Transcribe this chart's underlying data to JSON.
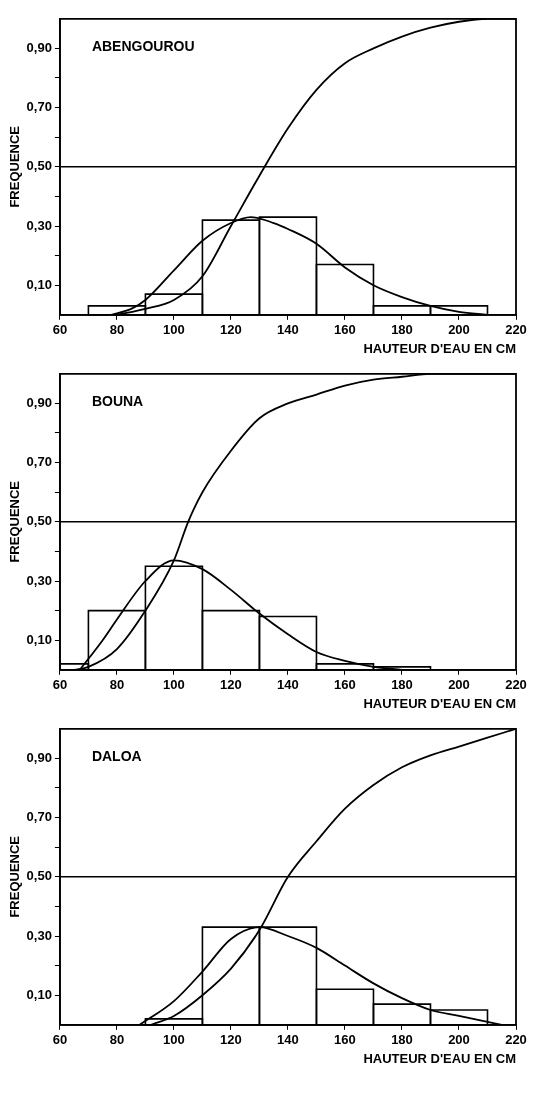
{
  "chart_data": [
    {
      "type": "histogram",
      "title": "ABENGOUROU",
      "xlabel": "HAUTEUR D'EAU EN CM",
      "ylabel": "FREQUENCE",
      "color": "#000000",
      "bins": [
        70,
        90,
        110,
        130,
        150,
        170,
        190,
        210
      ],
      "values": [
        0.03,
        0.07,
        0.32,
        0.33,
        0.17,
        0.03,
        0.03
      ],
      "series": [
        {
          "type": "line",
          "color": "#000000",
          "x": [
            78,
            85,
            90,
            100,
            110,
            120,
            127,
            135,
            140,
            150,
            160,
            170,
            180,
            190,
            200,
            210
          ],
          "values": [
            0,
            0.02,
            0.05,
            0.15,
            0.25,
            0.31,
            0.33,
            0.31,
            0.29,
            0.24,
            0.16,
            0.1,
            0.06,
            0.03,
            0.01,
            0
          ]
        },
        {
          "type": "line",
          "color": "#000000",
          "x": [
            80,
            90,
            100,
            110,
            120,
            130,
            140,
            150,
            160,
            170,
            180,
            190,
            200,
            210,
            220
          ],
          "values": [
            0,
            0.02,
            0.05,
            0.13,
            0.3,
            0.47,
            0.63,
            0.76,
            0.85,
            0.9,
            0.94,
            0.97,
            0.99,
            1,
            1
          ]
        }
      ],
      "ref_lines": [
        {
          "axis": "y",
          "value": 0.5,
          "color": "#000000"
        }
      ],
      "xlim": [
        60,
        220
      ],
      "xticks": [
        60,
        80,
        100,
        120,
        140,
        160,
        180,
        200,
        220
      ],
      "ylim": [
        0,
        1
      ],
      "yticks": [
        {
          "value": 0.1,
          "label": "0,10"
        },
        {
          "value": 0.2,
          "label": null
        },
        {
          "value": 0.3,
          "label": "0,30"
        },
        {
          "value": 0.4,
          "label": null
        },
        {
          "value": 0.5,
          "label": "0,50"
        },
        {
          "value": 0.6,
          "label": null
        },
        {
          "value": 0.7,
          "label": "0,70"
        },
        {
          "value": 0.8,
          "label": null
        },
        {
          "value": 0.9,
          "label": "0,90"
        }
      ],
      "marker": "none",
      "line_style": "solid"
    },
    {
      "type": "histogram",
      "title": "BOUNA",
      "xlabel": "HAUTEUR D'EAU EN CM",
      "ylabel": "FREQUENCE",
      "color": "#000000",
      "bins": [
        60,
        70,
        90,
        110,
        130,
        150,
        170,
        190
      ],
      "values": [
        0.02,
        0.2,
        0.35,
        0.2,
        0.18,
        0.02,
        0.01
      ],
      "series": [
        {
          "type": "line",
          "color": "#000000",
          "x": [
            67,
            75,
            80,
            90,
            100,
            110,
            120,
            130,
            140,
            150,
            160,
            170,
            180
          ],
          "values": [
            0,
            0.1,
            0.17,
            0.3,
            0.37,
            0.34,
            0.27,
            0.19,
            0.12,
            0.06,
            0.03,
            0.01,
            0
          ]
        },
        {
          "type": "line",
          "color": "#000000",
          "x": [
            65,
            70,
            80,
            90,
            100,
            105,
            110,
            120,
            130,
            140,
            150,
            160,
            170,
            180,
            190,
            220
          ],
          "values": [
            0,
            0.01,
            0.07,
            0.2,
            0.37,
            0.5,
            0.6,
            0.74,
            0.85,
            0.9,
            0.93,
            0.96,
            0.98,
            0.99,
            1,
            1
          ]
        }
      ],
      "ref_lines": [
        {
          "axis": "y",
          "value": 0.5,
          "color": "#000000"
        }
      ],
      "xlim": [
        60,
        220
      ],
      "xticks": [
        60,
        80,
        100,
        120,
        140,
        160,
        180,
        200,
        220
      ],
      "ylim": [
        0,
        1
      ],
      "yticks": [
        {
          "value": 0.1,
          "label": "0,10"
        },
        {
          "value": 0.2,
          "label": null
        },
        {
          "value": 0.3,
          "label": "0,30"
        },
        {
          "value": 0.4,
          "label": null
        },
        {
          "value": 0.5,
          "label": "0,50"
        },
        {
          "value": 0.6,
          "label": null
        },
        {
          "value": 0.7,
          "label": "0,70"
        },
        {
          "value": 0.8,
          "label": null
        },
        {
          "value": 0.9,
          "label": "0,90"
        }
      ],
      "marker": "none",
      "line_style": "solid"
    },
    {
      "type": "histogram",
      "title": "DALOA",
      "xlabel": "HAUTEUR D'EAU EN CM",
      "ylabel": "FREQUENCE",
      "color": "#000000",
      "bins": [
        90,
        110,
        130,
        150,
        170,
        190,
        210
      ],
      "values": [
        0.02,
        0.33,
        0.33,
        0.12,
        0.07,
        0.05
      ],
      "series": [
        {
          "type": "line",
          "color": "#000000",
          "x": [
            88,
            100,
            110,
            120,
            130,
            140,
            150,
            160,
            170,
            180,
            190,
            200,
            210,
            215
          ],
          "values": [
            0,
            0.08,
            0.18,
            0.29,
            0.33,
            0.3,
            0.26,
            0.2,
            0.14,
            0.09,
            0.05,
            0.03,
            0.01,
            0
          ]
        },
        {
          "type": "line",
          "color": "#000000",
          "x": [
            92,
            100,
            110,
            120,
            130,
            140,
            150,
            160,
            170,
            180,
            190,
            200,
            210,
            220
          ],
          "values": [
            0,
            0.03,
            0.1,
            0.19,
            0.32,
            0.5,
            0.62,
            0.73,
            0.81,
            0.87,
            0.91,
            0.94,
            0.97,
            1
          ]
        }
      ],
      "ref_lines": [
        {
          "axis": "y",
          "value": 0.5,
          "color": "#000000"
        }
      ],
      "xlim": [
        60,
        220
      ],
      "xticks": [
        60,
        80,
        100,
        120,
        140,
        160,
        180,
        200,
        220
      ],
      "ylim": [
        0,
        1
      ],
      "yticks": [
        {
          "value": 0.1,
          "label": "0,10"
        },
        {
          "value": 0.2,
          "label": null
        },
        {
          "value": 0.3,
          "label": "0,30"
        },
        {
          "value": 0.4,
          "label": null
        },
        {
          "value": 0.5,
          "label": "0,50"
        },
        {
          "value": 0.6,
          "label": null
        },
        {
          "value": 0.7,
          "label": "0,70"
        },
        {
          "value": 0.8,
          "label": null
        },
        {
          "value": 0.9,
          "label": "0,90"
        }
      ],
      "marker": "none",
      "line_style": "solid"
    }
  ]
}
